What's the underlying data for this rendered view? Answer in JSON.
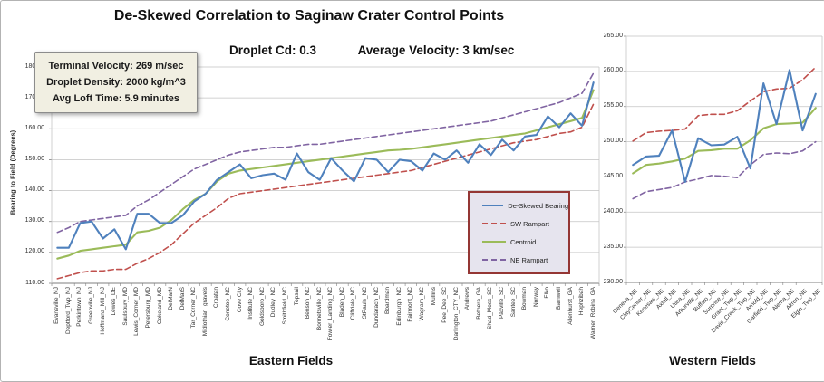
{
  "header": {
    "title": "De-Skewed Correlation to Saginaw Crater Control Points",
    "subtitle_left": "Droplet Cd: 0.3",
    "subtitle_right": "Average Velocity: 3 km/sec"
  },
  "annotation_box": {
    "line1": "Terminal Velocity: 269 m/sec",
    "line2": "Droplet Density: 2000 kg/m^3",
    "line3": "Avg Loft Time: 5.9 minutes"
  },
  "chart_data": [
    {
      "type": "line",
      "title": "Eastern Fields",
      "ylabel": "Bearing to Field (Degrees)",
      "ylim": [
        110,
        180
      ],
      "ytick_step": 10,
      "grid": true,
      "legend_position": "inside-right",
      "categories": [
        "Evansville_NJ",
        "Deptford_Twp_NJ",
        "Perkintown_NJ",
        "Greenville_NJ",
        "Hoffmans_Mill_NJ",
        "Lewes_DE",
        "Saulsbury_MD",
        "Lewis_Corner_MD",
        "Petersburg_MD",
        "Cokeland_MD",
        "DelMarN",
        "DelMarS",
        "Tar_Corner_NC",
        "Midlothian_gravels",
        "Croatan",
        "Conetoe_NC",
        "Cove City",
        "Institute_NC",
        "Goldsboro_NC",
        "Dudley_NC",
        "Smithfield_NC",
        "Topsail",
        "Benson_NC",
        "Bonnetsville_NC",
        "Fowler_Landing_NC",
        "Bladen_NC",
        "Cliffdale_NC",
        "StPauls_NC",
        "Dundarach_NC",
        "Boardman",
        "Edinburgh_NC",
        "Fairmont_NC",
        "Wagram_NC",
        "Mullins",
        "Pee_Dee_SC",
        "Darlington_CTY_NC",
        "Andrews",
        "Bethera_GA",
        "Shad_Moss_SC",
        "Paxville_SC",
        "Santee_SC",
        "Bowman",
        "Norway",
        "Elko",
        "Barnwell",
        "Allenhurst_GA",
        "Hephzibah",
        "Warner_Robins_GA"
      ],
      "series": [
        {
          "name": "De-Skewed Bearing",
          "color": "#4f81bd",
          "style": "solid",
          "values": [
            121.5,
            121.5,
            129.5,
            130,
            124.5,
            127.5,
            121,
            132.5,
            132.5,
            129.5,
            129.5,
            132,
            136.5,
            139,
            143.5,
            146,
            148.5,
            144,
            145,
            145.5,
            143.5,
            152,
            146,
            143.5,
            150.5,
            146.5,
            143,
            150.5,
            150,
            146,
            150,
            149.5,
            146.5,
            152,
            150,
            153,
            149,
            155,
            151.5,
            156.5,
            153,
            157.5,
            158,
            164,
            160.5,
            165,
            161,
            175
          ]
        },
        {
          "name": "SW Rampart",
          "color": "#c0504d",
          "style": "dashed",
          "values": [
            111.5,
            112.5,
            113.5,
            114,
            114,
            114.5,
            114.5,
            116.5,
            118,
            120,
            122.5,
            126,
            129.5,
            132,
            134.5,
            137.5,
            139,
            139.5,
            140,
            140.5,
            141,
            141.5,
            142,
            142.5,
            143,
            143.5,
            144,
            144.5,
            145,
            145.5,
            146,
            146.5,
            147.5,
            148.5,
            149.5,
            150.5,
            151.5,
            152.5,
            153.5,
            154.5,
            155.5,
            156,
            156.5,
            157.5,
            158.5,
            159,
            160.5,
            168
          ]
        },
        {
          "name": "Centroid",
          "color": "#9bbb59",
          "style": "solid",
          "values": [
            118,
            119,
            120.5,
            121,
            121.5,
            122,
            122.5,
            126.5,
            127,
            128,
            130.5,
            134,
            137,
            139,
            143,
            145.5,
            146.5,
            147,
            147.5,
            148,
            148.5,
            149,
            149.5,
            150,
            150.5,
            151,
            151.5,
            152,
            152.5,
            153,
            153.2,
            153.5,
            154,
            154.5,
            155,
            155.5,
            156,
            156.5,
            157,
            157.5,
            158,
            158.5,
            159.5,
            160.5,
            161.5,
            162.5,
            163.5,
            172.5
          ]
        },
        {
          "name": "NE Rampart",
          "color": "#8064a2",
          "style": "dashed",
          "values": [
            126.5,
            128,
            130,
            130.5,
            131,
            131.5,
            132,
            135,
            137,
            139.5,
            142,
            144.5,
            147,
            148.5,
            150,
            151.5,
            152.5,
            153,
            153.5,
            154,
            154,
            154.5,
            155,
            155,
            155.5,
            156,
            156.5,
            157,
            157.5,
            158,
            158.5,
            159,
            159.5,
            160,
            160.5,
            161,
            161.5,
            162,
            162.5,
            163.5,
            164.5,
            165.5,
            166.5,
            167.5,
            168.5,
            170,
            171.5,
            178
          ]
        }
      ]
    },
    {
      "type": "line",
      "title": "Western Fields",
      "ylabel": "",
      "ylim": [
        230,
        265
      ],
      "ytick_step": 5,
      "grid": true,
      "legend_position": "none",
      "categories": [
        "Geneva_NE",
        "ClayCenter_NE",
        "Kenesaw_NE",
        "Axtell_NE",
        "Utica_NE",
        "Arborville_NE",
        "Buffalo_NE",
        "Surprise_NE",
        "Grant_Twp_NE",
        "Davis_Creek_Twp_NE",
        "Arnold_NE",
        "Garfield_Twp_NE",
        "Alerna_NE",
        "Akron_NE",
        "Elgin_Twp_NE"
      ],
      "series": [
        {
          "name": "De-Skewed Bearing",
          "color": "#4f81bd",
          "style": "solid",
          "values": [
            246.7,
            247.9,
            248.0,
            251.6,
            244.3,
            250.5,
            249.5,
            249.6,
            250.7,
            246.2,
            258.3,
            252.5,
            260.2,
            251.6,
            256.8
          ]
        },
        {
          "name": "SW Rampart",
          "color": "#c0504d",
          "style": "dashed",
          "values": [
            250.1,
            251.3,
            251.5,
            251.6,
            251.8,
            253.7,
            253.9,
            253.9,
            254.4,
            255.8,
            257.1,
            257.5,
            257.6,
            258.8,
            260.6
          ]
        },
        {
          "name": "Centroid",
          "color": "#9bbb59",
          "style": "solid",
          "values": [
            245.5,
            246.7,
            246.9,
            247.2,
            247.6,
            248.7,
            248.8,
            249.0,
            249.0,
            250.2,
            251.9,
            252.5,
            252.6,
            252.7,
            254.8
          ]
        },
        {
          "name": "NE Rampart",
          "color": "#8064a2",
          "style": "dashed",
          "values": [
            241.9,
            242.9,
            243.2,
            243.5,
            244.3,
            244.7,
            245.2,
            245.1,
            244.9,
            246.7,
            248.2,
            248.4,
            248.3,
            248.7,
            250.0
          ]
        }
      ]
    }
  ]
}
